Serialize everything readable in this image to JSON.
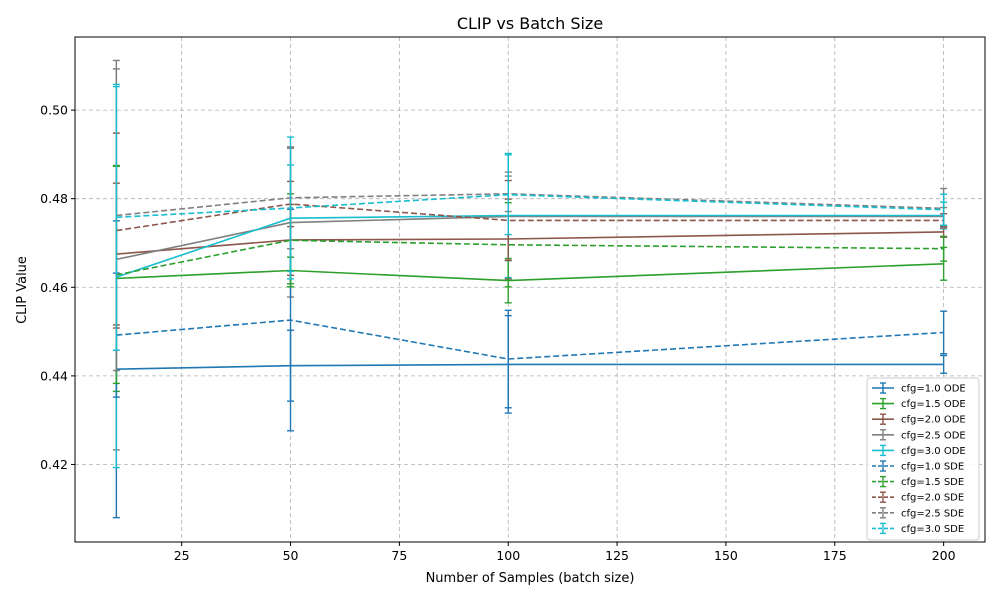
{
  "chart_data": {
    "type": "line",
    "title": "CLIP vs Batch Size",
    "xlabel": "Number of Samples (batch size)",
    "ylabel": "CLIP Value",
    "xlim": [
      0.5,
      209.5
    ],
    "ylim": [
      0.4025,
      0.5165
    ],
    "xticks": [
      25,
      50,
      75,
      100,
      125,
      150,
      175,
      200
    ],
    "yticks": [
      0.42,
      0.44,
      0.46,
      0.48,
      0.5
    ],
    "grid": true,
    "legend_position": "lower-right",
    "x": [
      10,
      50,
      100,
      200
    ],
    "series": [
      {
        "name": "cfg=1.0 ODE",
        "color": "#1f77b4",
        "dash": "solid",
        "values": [
          0.4415,
          0.4423,
          0.4426,
          0.4426
        ],
        "err": [
          0.0335,
          0.008,
          0.011,
          0.002
        ]
      },
      {
        "name": "cfg=1.5 ODE",
        "color": "#2ca02c",
        "dash": "solid",
        "values": [
          0.462,
          0.4638,
          0.4615,
          0.4653
        ],
        "err": [
          0.0255,
          0.003,
          0.005,
          0.0037
        ]
      },
      {
        "name": "cfg=2.0 ODE",
        "color": "#8c564b",
        "dash": "solid",
        "values": [
          0.4675,
          0.4707,
          0.4709,
          0.4725
        ],
        "err": [
          0.016,
          0.008,
          0.009,
          0.0012
        ]
      },
      {
        "name": "cfg=2.5 ODE",
        "color": "#7f7f7f",
        "dash": "solid",
        "values": [
          0.4663,
          0.4746,
          0.476,
          0.476
        ],
        "err": [
          0.043,
          0.0168,
          0.01,
          0.002
        ]
      },
      {
        "name": "cfg=3.0 ODE",
        "color": "#17becf",
        "dash": "solid",
        "values": [
          0.4623,
          0.4756,
          0.4762,
          0.4762
        ],
        "err": [
          0.043,
          0.012,
          0.014,
          0.003
        ]
      },
      {
        "name": "cfg=1.0 SDE",
        "color": "#1f77b4",
        "dash": "dashed",
        "values": [
          0.4492,
          0.4526,
          0.4438,
          0.4498
        ],
        "err": [
          0.014,
          0.025,
          0.011,
          0.0048
        ]
      },
      {
        "name": "cfg=1.5 SDE",
        "color": "#2ca02c",
        "dash": "dashed",
        "values": [
          0.4628,
          0.4706,
          0.4696,
          0.4687
        ],
        "err": [
          0.0245,
          0.0105,
          0.0095,
          0.0028
        ]
      },
      {
        "name": "cfg=2.0 SDE",
        "color": "#8c564b",
        "dash": "dashed",
        "values": [
          0.4728,
          0.4788,
          0.4751,
          0.4751
        ],
        "err": [
          0.022,
          0.0051,
          0.009,
          0.0015
        ]
      },
      {
        "name": "cfg=2.5 SDE",
        "color": "#7f7f7f",
        "dash": "dashed",
        "values": [
          0.4762,
          0.4802,
          0.4811,
          0.4778
        ],
        "err": [
          0.035,
          0.0115,
          0.004,
          0.0045
        ]
      },
      {
        "name": "cfg=3.0 SDE",
        "color": "#17becf",
        "dash": "dashed",
        "values": [
          0.4758,
          0.4779,
          0.4809,
          0.4775
        ],
        "err": [
          0.03,
          0.016,
          0.009,
          0.0035
        ]
      }
    ]
  }
}
